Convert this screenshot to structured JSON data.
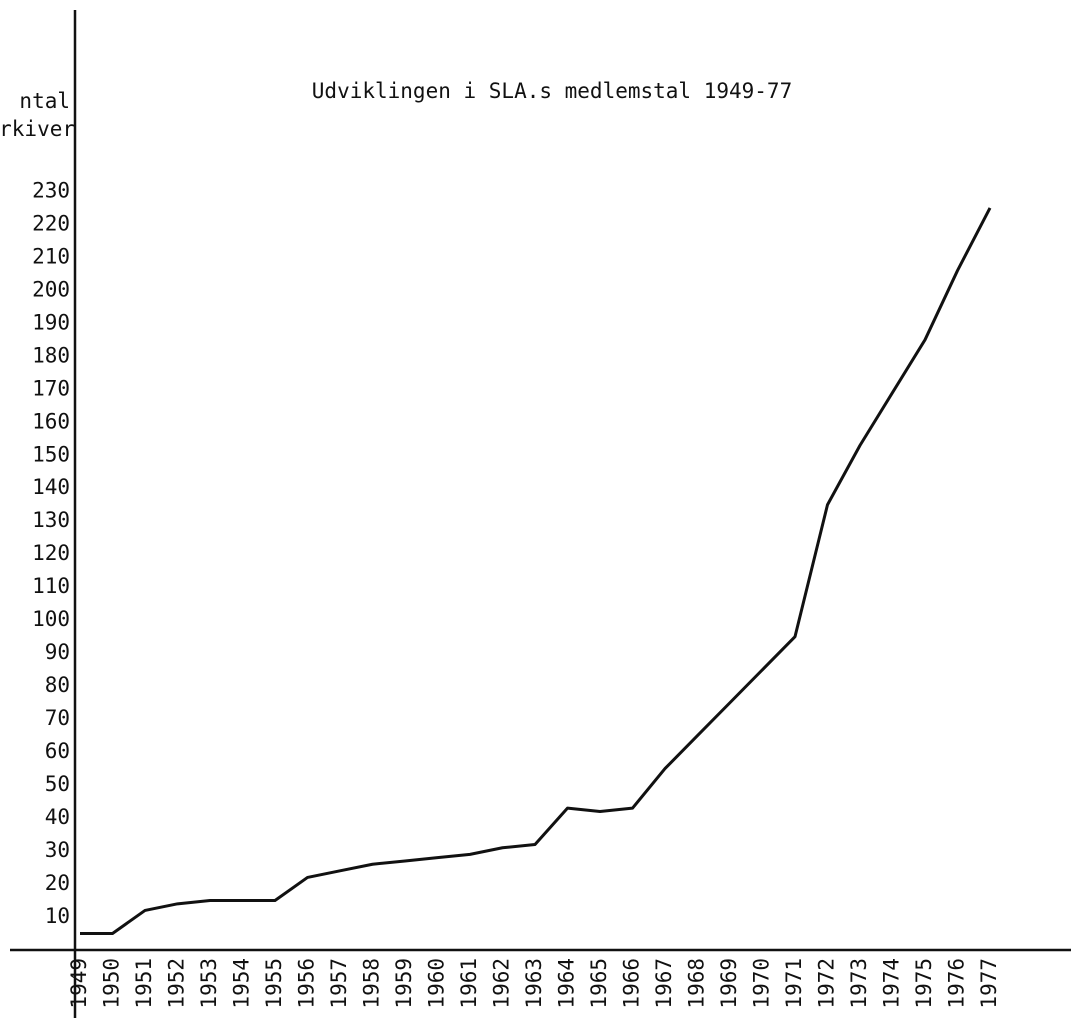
{
  "chart_data": {
    "type": "line",
    "title": "Udviklingen i SLA.s medlemstal 1949-77",
    "ylabel": [
      "ntal",
      "rkiver"
    ],
    "categories": [
      "1949",
      "1950",
      "1951",
      "1952",
      "1953",
      "1954",
      "1955",
      "1956",
      "1957",
      "1958",
      "1959",
      "1960",
      "1961",
      "1962",
      "1963",
      "1964",
      "1965",
      "1966",
      "1967",
      "1968",
      "1969",
      "1970",
      "1971",
      "1972",
      "1973",
      "1974",
      "1975",
      "1976",
      "1977"
    ],
    "series": [
      {
        "color": "#111111",
        "values": [
          5,
          5,
          12,
          14,
          15,
          15,
          15,
          22,
          24,
          26,
          27,
          28,
          29,
          31,
          32,
          43,
          42,
          43,
          55,
          65,
          75,
          85,
          95,
          135,
          153,
          169,
          185,
          206,
          225
        ]
      }
    ],
    "ylim": [
      0,
      285
    ],
    "yticks": [
      10,
      20,
      30,
      40,
      50,
      60,
      70,
      80,
      90,
      100,
      110,
      120,
      130,
      140,
      150,
      160,
      170,
      180,
      190,
      200,
      210,
      220,
      230
    ],
    "grid": false
  }
}
